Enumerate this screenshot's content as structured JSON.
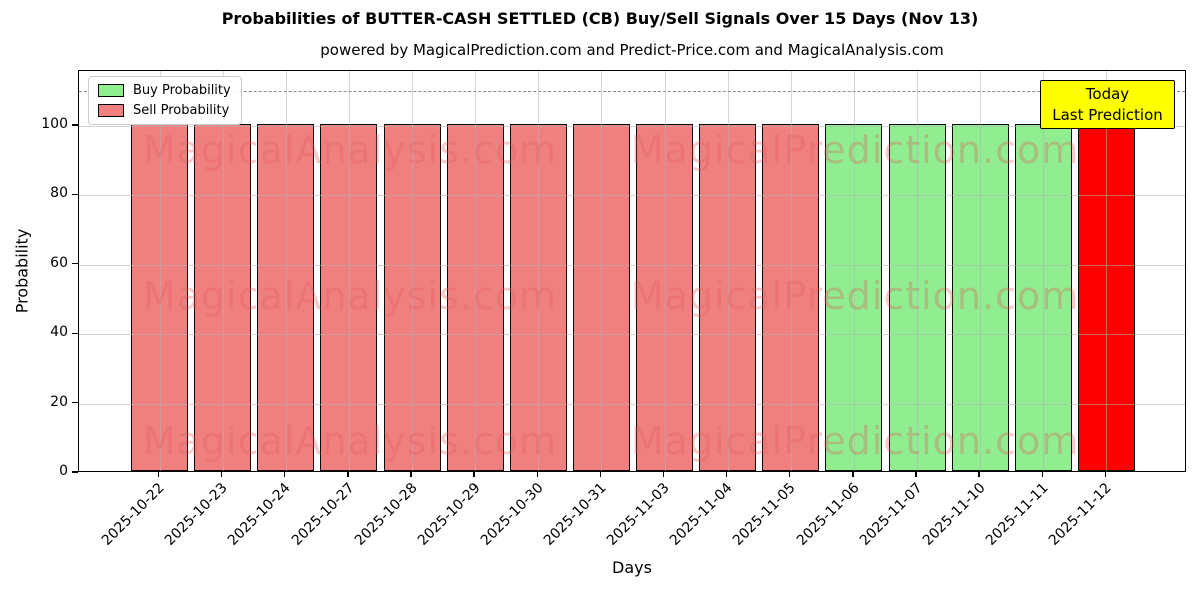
{
  "suptitle": "Probabilities of BUTTER-CASH SETTLED (CB) Buy/Sell Signals Over 15 Days (Nov 13)",
  "axes_title": "powered by MagicalPrediction.com and Predict-Price.com and MagicalAnalysis.com",
  "y_axis_label": "Probability",
  "x_axis_label": "Days",
  "legend": {
    "items": [
      {
        "label": "Buy Probability",
        "color": "#90EE90"
      },
      {
        "label": "Sell Probability",
        "color": "#F08080"
      }
    ]
  },
  "annotation_box": {
    "line1": "Today",
    "line2": "Last Prediction",
    "bg_color": "#FFFF00"
  },
  "watermark": {
    "left_text": "MagicalAnalysis.com",
    "right_text": "MagicalPrediction.com",
    "color": "rgba(225,90,90,0.32)",
    "rows": 3
  },
  "colors": {
    "buy": "#90EE90",
    "sell": "#F08080",
    "today": "#FF0000",
    "bar_edge": "#0a0a0a",
    "grid": "#B0B0B0",
    "dashed_guide": "#8A8A8A",
    "annotation_bg": "#FFFF00"
  },
  "chart_data": {
    "type": "bar",
    "title": "Probabilities of BUTTER-CASH SETTLED (CB) Buy/Sell Signals Over 15 Days (Nov 13)",
    "subtitle": "powered by MagicalPrediction.com and Predict-Price.com and MagicalAnalysis.com",
    "xlabel": "Days",
    "ylabel": "Probability",
    "ylim": [
      0,
      115.9
    ],
    "yticks": [
      0,
      20,
      40,
      60,
      80,
      100
    ],
    "dashed_guide_y": 110,
    "grid": true,
    "legend_position": "upper left",
    "categories": [
      "2025-10-22",
      "2025-10-23",
      "2025-10-24",
      "2025-10-27",
      "2025-10-28",
      "2025-10-29",
      "2025-10-30",
      "2025-10-31",
      "2025-11-03",
      "2025-11-04",
      "2025-11-05",
      "2025-11-06",
      "2025-11-07",
      "2025-11-10",
      "2025-11-11",
      "2025-11-12"
    ],
    "bar_signals": [
      "sell",
      "sell",
      "sell",
      "sell",
      "sell",
      "sell",
      "sell",
      "sell",
      "sell",
      "sell",
      "sell",
      "buy",
      "buy",
      "buy",
      "buy",
      "today"
    ],
    "series": [
      {
        "name": "Sell Probability",
        "color": "#F08080",
        "values": [
          100,
          100,
          100,
          100,
          100,
          100,
          100,
          100,
          100,
          100,
          100,
          0,
          0,
          0,
          0,
          0
        ]
      },
      {
        "name": "Buy Probability",
        "color": "#90EE90",
        "values": [
          0,
          0,
          0,
          0,
          0,
          0,
          0,
          0,
          0,
          0,
          0,
          100,
          100,
          100,
          100,
          0
        ]
      },
      {
        "name": "Today Last Prediction",
        "color": "#FF0000",
        "values": [
          0,
          0,
          0,
          0,
          0,
          0,
          0,
          0,
          0,
          0,
          0,
          0,
          0,
          0,
          0,
          100
        ]
      }
    ]
  }
}
